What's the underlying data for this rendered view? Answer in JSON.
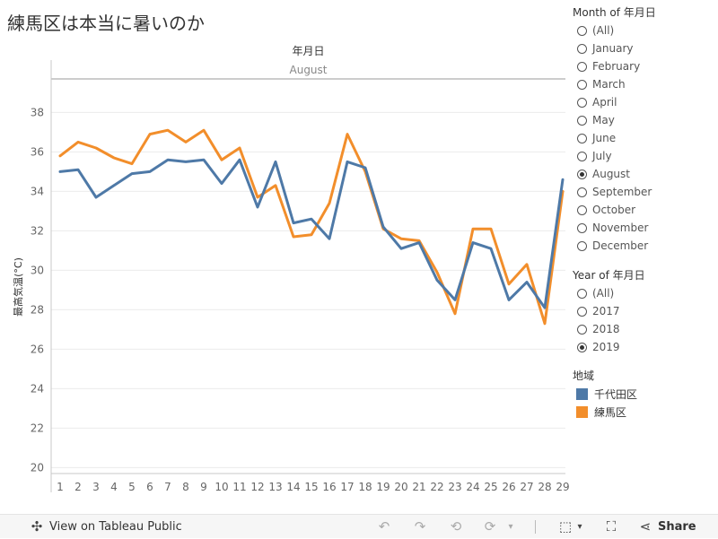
{
  "title": "練馬区は本当に暑いのか",
  "chart_data": {
    "type": "line",
    "column_header": "年月日",
    "column_value": "August",
    "ylabel": "最高気温(°C)",
    "y_ticks": [
      20,
      22,
      24,
      26,
      28,
      30,
      32,
      34,
      36,
      38
    ],
    "ylim": [
      19.7,
      39.7
    ],
    "grid": true,
    "x": [
      1,
      2,
      3,
      4,
      5,
      6,
      7,
      8,
      9,
      10,
      11,
      12,
      13,
      14,
      15,
      16,
      17,
      18,
      19,
      20,
      21,
      22,
      23,
      24,
      25,
      26,
      27,
      28,
      29
    ],
    "x_tick_labels": [
      "1",
      "2",
      "3",
      "4",
      "5",
      "6",
      "7",
      "8",
      "9",
      "10",
      "11",
      "12",
      "13",
      "14",
      "15",
      "16",
      "17",
      "18",
      "19",
      "20",
      "21",
      "22",
      "23",
      "24",
      "25",
      "26",
      "27",
      "28",
      "29"
    ],
    "series": [
      {
        "name": "千代田区",
        "color": "#4e79a7",
        "values": [
          35.0,
          35.1,
          33.7,
          34.3,
          34.9,
          35.0,
          35.6,
          35.5,
          35.6,
          34.4,
          35.6,
          33.2,
          35.5,
          32.4,
          32.6,
          31.6,
          35.5,
          35.2,
          32.2,
          31.1,
          31.4,
          29.5,
          28.5,
          31.4,
          31.1,
          28.5,
          29.4,
          28.1,
          34.6
        ]
      },
      {
        "name": "練馬区",
        "color": "#f28e2b",
        "values": [
          35.8,
          36.5,
          36.2,
          35.7,
          35.4,
          36.9,
          37.1,
          36.5,
          37.1,
          35.6,
          36.2,
          33.7,
          34.3,
          31.7,
          31.8,
          33.4,
          36.9,
          35.0,
          32.1,
          31.6,
          31.5,
          29.9,
          27.8,
          32.1,
          32.1,
          29.3,
          30.3,
          27.3,
          34.0
        ]
      }
    ]
  },
  "filters": {
    "month": {
      "header": "Month of 年月日",
      "options": [
        {
          "label": "(All)",
          "selected": false
        },
        {
          "label": "January",
          "selected": false
        },
        {
          "label": "February",
          "selected": false
        },
        {
          "label": "March",
          "selected": false
        },
        {
          "label": "April",
          "selected": false
        },
        {
          "label": "May",
          "selected": false
        },
        {
          "label": "June",
          "selected": false
        },
        {
          "label": "July",
          "selected": false
        },
        {
          "label": "August",
          "selected": true
        },
        {
          "label": "September",
          "selected": false
        },
        {
          "label": "October",
          "selected": false
        },
        {
          "label": "November",
          "selected": false
        },
        {
          "label": "December",
          "selected": false
        }
      ]
    },
    "year": {
      "header": "Year of 年月日",
      "options": [
        {
          "label": "(All)",
          "selected": false
        },
        {
          "label": "2017",
          "selected": false
        },
        {
          "label": "2018",
          "selected": false
        },
        {
          "label": "2019",
          "selected": true
        }
      ]
    }
  },
  "legend": {
    "header": "地域",
    "items": [
      {
        "label": "千代田区",
        "color": "#4e79a7"
      },
      {
        "label": "練馬区",
        "color": "#f28e2b"
      }
    ]
  },
  "toolbar": {
    "view_label": "View on Tableau Public",
    "share_label": "Share",
    "icons": {
      "logo": "tableau-logo-icon",
      "undo": "undo-icon",
      "redo": "redo-icon",
      "revert": "revert-icon",
      "refresh": "refresh-icon",
      "download": "download-icon",
      "fullscreen": "fullscreen-icon",
      "share": "share-icon"
    }
  }
}
